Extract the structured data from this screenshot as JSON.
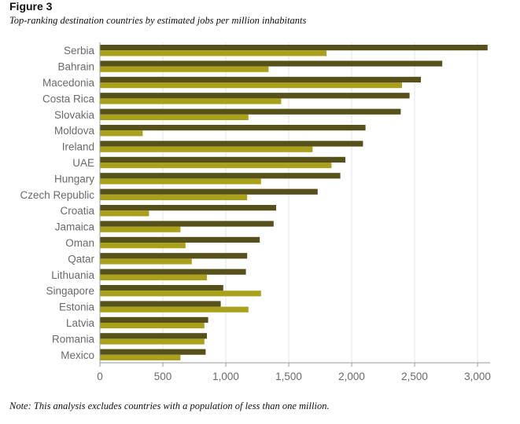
{
  "figure_label": "Figure 3",
  "subtitle": "Top-ranking destination countries by estimated jobs per million inhabitants",
  "note": "Note: This analysis excludes countries with a population of less than one million.",
  "colors": {
    "series_dark": "#56501a",
    "series_light": "#a9a11c",
    "grid": "#e3e3e3",
    "axis": "#9a9a9a"
  },
  "chart_data": {
    "type": "bar",
    "orientation": "horizontal",
    "title": "",
    "xlabel": "",
    "ylabel": "",
    "xlim": [
      0,
      3100
    ],
    "xticks": [
      0,
      500,
      1000,
      1500,
      2000,
      2500,
      3000
    ],
    "xtick_labels": [
      "0",
      "500",
      "1,000",
      "1,500",
      "2,000",
      "2,500",
      "3,000"
    ],
    "grid": "vertical",
    "legend": "none",
    "categories": [
      "Serbia",
      "Bahrain",
      "Macedonia",
      "Costa Rica",
      "Slovakia",
      "Moldova",
      "Ireland",
      "UAE",
      "Hungary",
      "Czech Republic",
      "Croatia",
      "Jamaica",
      "Oman",
      "Qatar",
      "Lithuania",
      "Singapore",
      "Estonia",
      "Latvia",
      "Romania",
      "Mexico"
    ],
    "series": [
      {
        "values": [
          3080,
          2720,
          2550,
          2460,
          2390,
          2110,
          2090,
          1950,
          1910,
          1730,
          1400,
          1380,
          1270,
          1170,
          1160,
          980,
          960,
          860,
          850,
          840
        ]
      },
      {
        "values": [
          1800,
          1340,
          2400,
          1440,
          1180,
          340,
          1690,
          1840,
          1280,
          1170,
          390,
          640,
          680,
          730,
          850,
          1280,
          1180,
          830,
          830,
          640
        ]
      }
    ]
  }
}
